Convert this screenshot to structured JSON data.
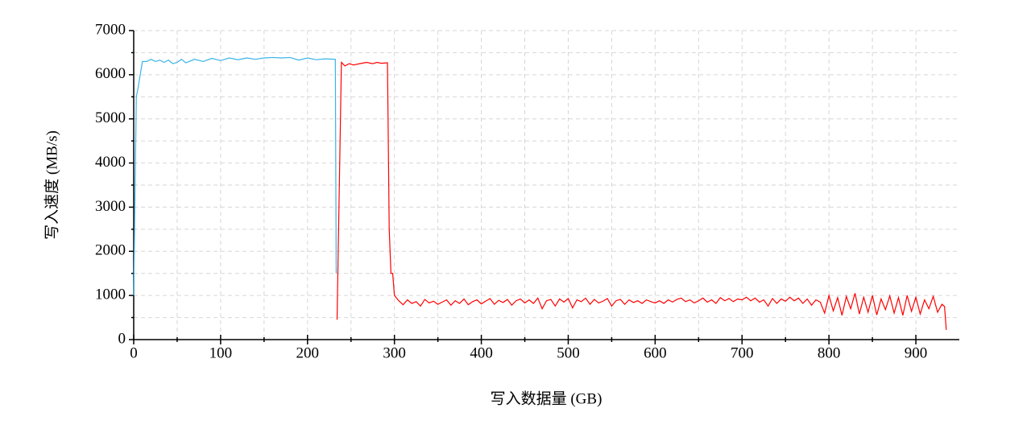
{
  "chart_data": {
    "type": "line",
    "xlabel": "写入数据量 (GB)",
    "ylabel": "写入速度 (MB/s)",
    "xlim": [
      0,
      950
    ],
    "ylim": [
      0,
      7000
    ],
    "xticks": [
      0,
      100,
      200,
      300,
      400,
      500,
      600,
      700,
      800,
      900
    ],
    "yticks": [
      0,
      1000,
      2000,
      3000,
      4000,
      5000,
      6000,
      7000
    ],
    "grid": true,
    "series": [
      {
        "color": "#3bb3e8",
        "x": [
          0,
          3,
          5,
          10,
          15,
          20,
          25,
          30,
          35,
          40,
          45,
          50,
          55,
          60,
          70,
          80,
          90,
          100,
          110,
          120,
          130,
          140,
          150,
          160,
          170,
          180,
          190,
          200,
          210,
          220,
          230,
          232,
          233
        ],
        "values": [
          1000,
          5500,
          5700,
          6300,
          6300,
          6350,
          6300,
          6330,
          6280,
          6330,
          6250,
          6280,
          6350,
          6270,
          6350,
          6300,
          6370,
          6320,
          6380,
          6340,
          6380,
          6350,
          6380,
          6390,
          6380,
          6390,
          6330,
          6380,
          6340,
          6360,
          6350,
          6350,
          1500
        ]
      },
      {
        "color": "#ff0000",
        "x": [
          234,
          239,
          243,
          248,
          253,
          260,
          268,
          275,
          280,
          285,
          292,
          294,
          296,
          298,
          300,
          305,
          310,
          315,
          320,
          325,
          330,
          335,
          340,
          345,
          350,
          355,
          360,
          365,
          370,
          375,
          380,
          385,
          390,
          395,
          400,
          405,
          410,
          415,
          420,
          425,
          430,
          435,
          440,
          445,
          450,
          455,
          460,
          465,
          470,
          475,
          480,
          485,
          490,
          495,
          500,
          505,
          510,
          515,
          520,
          525,
          530,
          535,
          540,
          545,
          550,
          555,
          560,
          565,
          570,
          575,
          580,
          585,
          590,
          595,
          600,
          605,
          610,
          615,
          620,
          625,
          630,
          635,
          640,
          645,
          650,
          655,
          660,
          665,
          670,
          675,
          680,
          685,
          690,
          695,
          700,
          705,
          710,
          715,
          720,
          725,
          730,
          735,
          740,
          745,
          750,
          755,
          760,
          765,
          770,
          775,
          780,
          785,
          790,
          795,
          800,
          805,
          810,
          815,
          820,
          825,
          830,
          835,
          840,
          845,
          850,
          855,
          860,
          865,
          870,
          875,
          880,
          885,
          890,
          895,
          900,
          905,
          910,
          915,
          920,
          925,
          930,
          933,
          935
        ],
        "values": [
          450,
          6280,
          6200,
          6250,
          6220,
          6250,
          6280,
          6250,
          6280,
          6260,
          6270,
          2500,
          1500,
          1500,
          1000,
          880,
          790,
          900,
          820,
          860,
          760,
          910,
          830,
          870,
          800,
          850,
          900,
          780,
          880,
          820,
          920,
          790,
          860,
          900,
          810,
          870,
          930,
          800,
          890,
          840,
          910,
          780,
          880,
          920,
          830,
          900,
          820,
          940,
          700,
          880,
          910,
          760,
          920,
          850,
          930,
          720,
          900,
          860,
          940,
          800,
          910,
          830,
          870,
          930,
          760,
          880,
          910,
          800,
          900,
          840,
          880,
          820,
          900,
          860,
          830,
          880,
          820,
          900,
          850,
          910,
          940,
          860,
          900,
          830,
          880,
          940,
          850,
          900,
          820,
          950,
          880,
          930,
          860,
          920,
          900,
          960,
          880,
          940,
          850,
          900,
          760,
          930,
          820,
          920,
          870,
          960,
          880,
          940,
          820,
          920,
          780,
          900,
          850,
          600,
          1000,
          650,
          950,
          550,
          980,
          700,
          1050,
          580,
          960,
          620,
          1000,
          560,
          920,
          680,
          990,
          600,
          950,
          550,
          1000,
          640,
          960,
          580,
          900,
          700,
          980,
          620,
          800,
          750,
          220
        ]
      }
    ]
  }
}
